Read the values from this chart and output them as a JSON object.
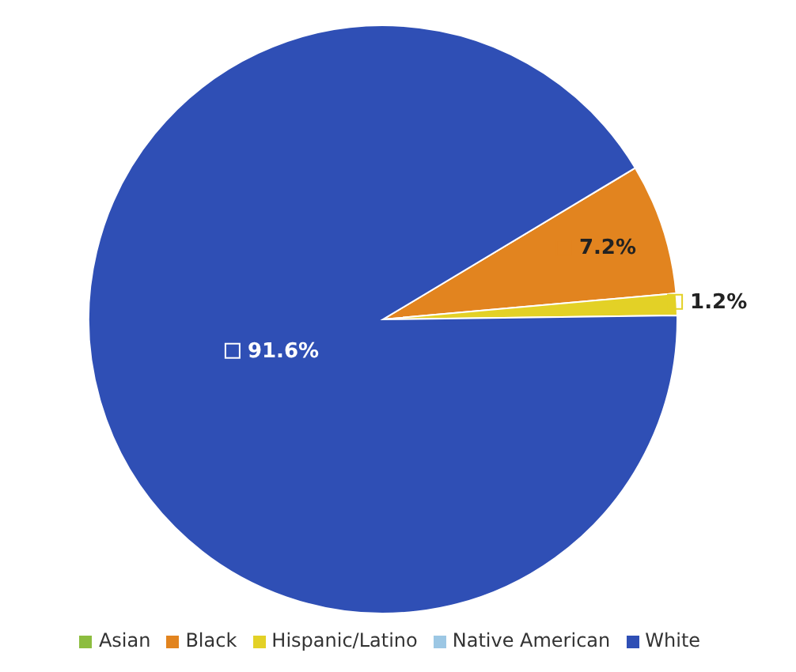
{
  "chart_data": {
    "type": "pie",
    "categories": [
      "Asian",
      "Black",
      "Hispanic/Latino",
      "Native American",
      "White"
    ],
    "values": [
      0,
      7.2,
      1.2,
      0,
      91.6
    ],
    "colors": [
      "#8cbd3f",
      "#e2841f",
      "#e3d126",
      "#9cc7e4",
      "#2f4fb5"
    ],
    "value_labels": [
      null,
      "7.2%",
      "1.2%",
      null,
      "91.6%"
    ],
    "legend": "bottom"
  }
}
